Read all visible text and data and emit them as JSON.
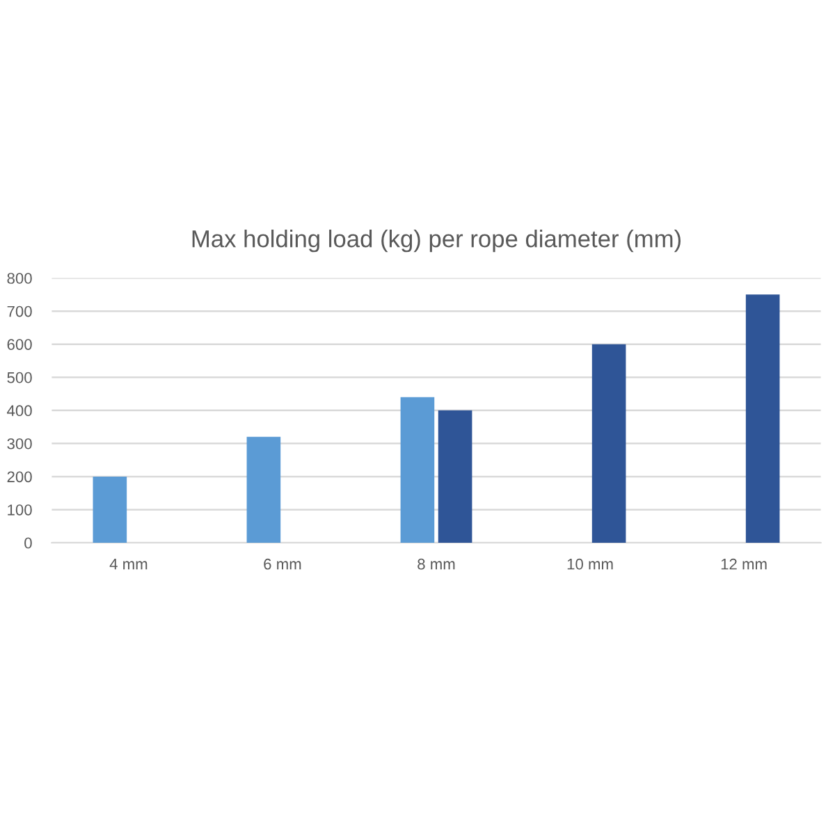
{
  "chart_data": {
    "type": "bar",
    "title": "Max holding load (kg) per rope diameter (mm)",
    "categories": [
      "4 mm",
      "6 mm",
      "8 mm",
      "10 mm",
      "12 mm"
    ],
    "series": [
      {
        "color": "#5b9bd5",
        "values": [
          200,
          320,
          440,
          null,
          null
        ]
      },
      {
        "color": "#2f5597",
        "values": [
          null,
          null,
          400,
          600,
          750
        ]
      }
    ],
    "ylim": [
      0,
      800
    ],
    "yticks": [
      0,
      100,
      200,
      300,
      400,
      500,
      600,
      700,
      800
    ],
    "grid": "y"
  }
}
